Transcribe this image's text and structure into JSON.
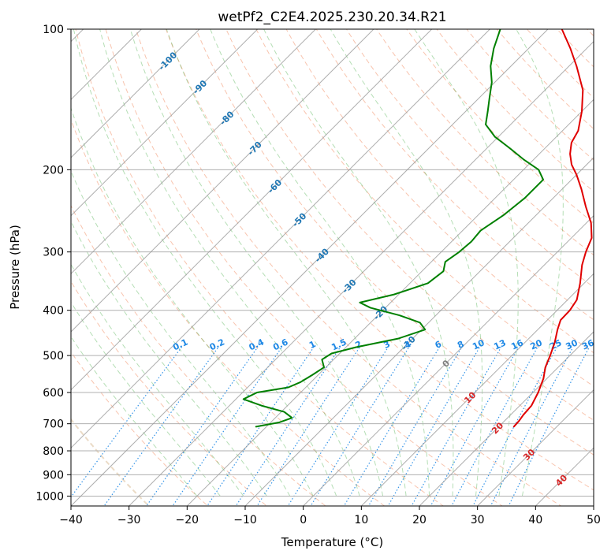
{
  "chart_data": {
    "type": "line",
    "subtype": "skew-T log-P diagram",
    "title": "wetPf2_C2E4.2025.230.20.34.R21",
    "xlabel": "Temperature (°C)",
    "ylabel": "Pressure (hPa)",
    "xlim": [
      -40,
      50
    ],
    "ylim": [
      1050,
      100
    ],
    "y_scale": "log",
    "x_ticks": [
      "−40",
      "−30",
      "−20",
      "−10",
      "0",
      "10",
      "20",
      "30",
      "40",
      "50"
    ],
    "y_ticks": [
      100,
      200,
      300,
      400,
      500,
      600,
      700,
      800,
      900,
      1000
    ],
    "grid": true,
    "colors": {
      "temperature": "#e00000",
      "dewpoint": "#008000",
      "isotherm": "#999999",
      "dry_adiabat": "#f4a582",
      "moist_adiabat": "#2ca02c",
      "mixing_ratio": "#1e88e5",
      "isotherm_label_blue": "#1f77b4",
      "isotherm_label_red": "#d62728"
    },
    "series": [
      {
        "name": "Temperature",
        "points": [
          {
            "p": 710,
            "t": 22.6
          },
          {
            "p": 690,
            "t": 22.5
          },
          {
            "p": 670,
            "t": 22.2
          },
          {
            "p": 640,
            "t": 22.0
          },
          {
            "p": 600,
            "t": 20.9
          },
          {
            "p": 560,
            "t": 19.4
          },
          {
            "p": 530,
            "t": 17.8
          },
          {
            "p": 500,
            "t": 16.6
          },
          {
            "p": 470,
            "t": 15.2
          },
          {
            "p": 440,
            "t": 13.4
          },
          {
            "p": 420,
            "t": 12.3
          },
          {
            "p": 400,
            "t": 12.2
          },
          {
            "p": 380,
            "t": 11.6
          },
          {
            "p": 350,
            "t": 9.3
          },
          {
            "p": 320,
            "t": 6.5
          },
          {
            "p": 300,
            "t": 4.9
          },
          {
            "p": 280,
            "t": 3.5
          },
          {
            "p": 260,
            "t": 0.8
          },
          {
            "p": 240,
            "t": -2.9
          },
          {
            "p": 220,
            "t": -6.7
          },
          {
            "p": 205,
            "t": -10.0
          },
          {
            "p": 195,
            "t": -12.6
          },
          {
            "p": 185,
            "t": -14.7
          },
          {
            "p": 175,
            "t": -16.4
          },
          {
            "p": 165,
            "t": -17.3
          },
          {
            "p": 150,
            "t": -20.0
          },
          {
            "p": 135,
            "t": -23.5
          },
          {
            "p": 120,
            "t": -28.7
          },
          {
            "p": 110,
            "t": -32.8
          },
          {
            "p": 100,
            "t": -37.6
          }
        ]
      },
      {
        "name": "Dewpoint",
        "points": [
          {
            "p": 710,
            "t": -21.8
          },
          {
            "p": 695,
            "t": -18.5
          },
          {
            "p": 680,
            "t": -17.1
          },
          {
            "p": 660,
            "t": -19.5
          },
          {
            "p": 640,
            "t": -24.5
          },
          {
            "p": 620,
            "t": -28.7
          },
          {
            "p": 600,
            "t": -27.5
          },
          {
            "p": 585,
            "t": -23.0
          },
          {
            "p": 570,
            "t": -21.8
          },
          {
            "p": 550,
            "t": -21.0
          },
          {
            "p": 530,
            "t": -20.3
          },
          {
            "p": 510,
            "t": -22.0
          },
          {
            "p": 495,
            "t": -21.4
          },
          {
            "p": 480,
            "t": -18.3
          },
          {
            "p": 460,
            "t": -12.5
          },
          {
            "p": 440,
            "t": -9.4
          },
          {
            "p": 425,
            "t": -11.5
          },
          {
            "p": 410,
            "t": -16.3
          },
          {
            "p": 395,
            "t": -22.6
          },
          {
            "p": 385,
            "t": -25.3
          },
          {
            "p": 370,
            "t": -20.8
          },
          {
            "p": 350,
            "t": -16.9
          },
          {
            "p": 330,
            "t": -16.3
          },
          {
            "p": 315,
            "t": -17.6
          },
          {
            "p": 300,
            "t": -16.9
          },
          {
            "p": 285,
            "t": -16.6
          },
          {
            "p": 270,
            "t": -16.9
          },
          {
            "p": 250,
            "t": -15.6
          },
          {
            "p": 230,
            "t": -14.9
          },
          {
            "p": 210,
            "t": -14.9
          },
          {
            "p": 200,
            "t": -17.4
          },
          {
            "p": 190,
            "t": -21.8
          },
          {
            "p": 180,
            "t": -26.0
          },
          {
            "p": 170,
            "t": -30.6
          },
          {
            "p": 160,
            "t": -34.3
          },
          {
            "p": 150,
            "t": -36.2
          },
          {
            "p": 140,
            "t": -38.3
          },
          {
            "p": 130,
            "t": -40.5
          },
          {
            "p": 120,
            "t": -43.5
          },
          {
            "p": 110,
            "t": -46.0
          },
          {
            "p": 100,
            "t": -48.2
          }
        ]
      }
    ],
    "isotherm_labels": [
      {
        "text": "-100",
        "t": -100,
        "p": 117
      },
      {
        "text": "-90",
        "t": -90,
        "p": 133
      },
      {
        "text": "-80",
        "t": -80,
        "p": 155
      },
      {
        "text": "-70",
        "t": -70,
        "p": 180
      },
      {
        "text": "-60",
        "t": -60,
        "p": 217
      },
      {
        "text": "-50",
        "t": -50,
        "p": 256
      },
      {
        "text": "-40",
        "t": -40,
        "p": 305
      },
      {
        "text": "-30",
        "t": -30,
        "p": 355
      },
      {
        "text": "-20",
        "t": -20,
        "p": 405
      },
      {
        "text": "-10",
        "t": -10,
        "p": 470
      },
      {
        "text": "0",
        "t": 0,
        "p": 520
      },
      {
        "text": "10",
        "t": 10,
        "p": 615
      },
      {
        "text": "20",
        "t": 20,
        "p": 715
      },
      {
        "text": "30",
        "t": 30,
        "p": 815
      },
      {
        "text": "40",
        "t": 40,
        "p": 925
      }
    ],
    "mixing_ratio_labels": [
      "0.1",
      "0.2",
      "0.4",
      "0.6",
      "1",
      "1.5",
      "2",
      "3",
      "4",
      "6",
      "8",
      "10",
      "13",
      "16",
      "20",
      "25",
      "30",
      "36"
    ],
    "mixing_ratio_label_pressure": 480
  }
}
